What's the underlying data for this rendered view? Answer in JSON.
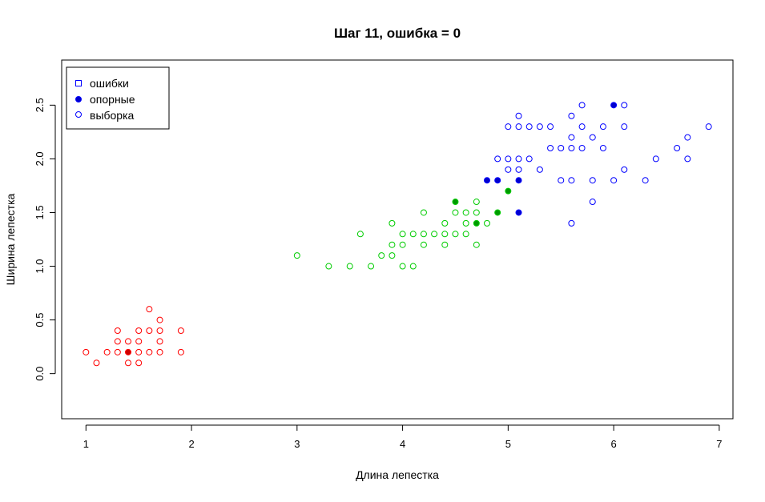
{
  "chart_data": {
    "type": "scatter",
    "title": "Шаг 11, ошибка = 0",
    "xlabel": "Длина лепестка",
    "ylabel": "Ширина лепестка",
    "xlim": [
      0.77,
      7.13
    ],
    "ylim": [
      -0.42,
      2.92
    ],
    "xticks": [
      1,
      2,
      3,
      4,
      5,
      6,
      7
    ],
    "yticks": [
      0.0,
      0.5,
      1.0,
      1.5,
      2.0,
      2.5
    ],
    "xtick_labels": [
      "1",
      "2",
      "3",
      "4",
      "5",
      "6",
      "7"
    ],
    "ytick_labels": [
      "0.0",
      "0.5",
      "1.0",
      "1.5",
      "2.0",
      "2.5"
    ],
    "grid": false,
    "legend": {
      "position": "top-left",
      "entries": [
        {
          "label": "ошибки",
          "marker": "open-square",
          "color": "#0000ff"
        },
        {
          "label": "опорные",
          "marker": "filled-circle",
          "color": "#0000ff"
        },
        {
          "label": "выборка",
          "marker": "open-circle",
          "color": "#0000ff"
        }
      ]
    },
    "colors": {
      "setosa": "#ff0000",
      "versicolor": "#00cc00",
      "virginica": "#0000ff",
      "setosa_fill": "#cc0000",
      "versicolor_fill": "#009900",
      "virginica_fill": "#0000cc"
    },
    "series": [
      {
        "color_key": "setosa",
        "sample": [
          [
            1.0,
            0.2
          ],
          [
            1.1,
            0.1
          ],
          [
            1.2,
            0.2
          ],
          [
            1.3,
            0.2
          ],
          [
            1.3,
            0.3
          ],
          [
            1.3,
            0.4
          ],
          [
            1.4,
            0.1
          ],
          [
            1.4,
            0.3
          ],
          [
            1.5,
            0.1
          ],
          [
            1.5,
            0.2
          ],
          [
            1.5,
            0.3
          ],
          [
            1.5,
            0.4
          ],
          [
            1.6,
            0.2
          ],
          [
            1.6,
            0.4
          ],
          [
            1.6,
            0.6
          ],
          [
            1.7,
            0.2
          ],
          [
            1.7,
            0.3
          ],
          [
            1.7,
            0.4
          ],
          [
            1.7,
            0.5
          ],
          [
            1.9,
            0.2
          ],
          [
            1.9,
            0.4
          ]
        ],
        "support": [
          [
            1.4,
            0.2
          ]
        ]
      },
      {
        "color_key": "versicolor",
        "sample": [
          [
            3.0,
            1.1
          ],
          [
            3.3,
            1.0
          ],
          [
            3.5,
            1.0
          ],
          [
            3.6,
            1.3
          ],
          [
            3.7,
            1.0
          ],
          [
            3.8,
            1.1
          ],
          [
            3.9,
            1.1
          ],
          [
            3.9,
            1.2
          ],
          [
            3.9,
            1.4
          ],
          [
            4.0,
            1.0
          ],
          [
            4.0,
            1.2
          ],
          [
            4.0,
            1.3
          ],
          [
            4.1,
            1.0
          ],
          [
            4.1,
            1.3
          ],
          [
            4.2,
            1.2
          ],
          [
            4.2,
            1.3
          ],
          [
            4.2,
            1.5
          ],
          [
            4.3,
            1.3
          ],
          [
            4.4,
            1.2
          ],
          [
            4.4,
            1.3
          ],
          [
            4.4,
            1.4
          ],
          [
            4.5,
            1.3
          ],
          [
            4.5,
            1.5
          ],
          [
            4.6,
            1.3
          ],
          [
            4.6,
            1.4
          ],
          [
            4.6,
            1.5
          ],
          [
            4.7,
            1.2
          ],
          [
            4.7,
            1.5
          ],
          [
            4.7,
            1.6
          ],
          [
            4.8,
            1.4
          ]
        ],
        "support": [
          [
            4.5,
            1.6
          ],
          [
            4.7,
            1.4
          ],
          [
            4.9,
            1.5
          ],
          [
            5.0,
            1.7
          ]
        ]
      },
      {
        "color_key": "virginica",
        "sample": [
          [
            4.9,
            2.0
          ],
          [
            5.0,
            1.9
          ],
          [
            5.0,
            2.0
          ],
          [
            5.0,
            2.3
          ],
          [
            5.1,
            1.9
          ],
          [
            5.1,
            2.0
          ],
          [
            5.1,
            2.3
          ],
          [
            5.1,
            2.4
          ],
          [
            5.2,
            2.0
          ],
          [
            5.2,
            2.3
          ],
          [
            5.3,
            1.9
          ],
          [
            5.3,
            2.3
          ],
          [
            5.4,
            2.1
          ],
          [
            5.4,
            2.3
          ],
          [
            5.5,
            1.8
          ],
          [
            5.5,
            2.1
          ],
          [
            5.6,
            1.4
          ],
          [
            5.6,
            1.8
          ],
          [
            5.6,
            2.1
          ],
          [
            5.6,
            2.2
          ],
          [
            5.6,
            2.4
          ],
          [
            5.7,
            2.1
          ],
          [
            5.7,
            2.3
          ],
          [
            5.7,
            2.5
          ],
          [
            5.8,
            1.6
          ],
          [
            5.8,
            1.8
          ],
          [
            5.8,
            2.2
          ],
          [
            5.9,
            2.1
          ],
          [
            5.9,
            2.3
          ],
          [
            6.0,
            1.8
          ],
          [
            6.1,
            1.9
          ],
          [
            6.1,
            2.3
          ],
          [
            6.1,
            2.5
          ],
          [
            6.3,
            1.8
          ],
          [
            6.4,
            2.0
          ],
          [
            6.6,
            2.1
          ],
          [
            6.7,
            2.0
          ],
          [
            6.7,
            2.2
          ],
          [
            6.9,
            2.3
          ]
        ],
        "support": [
          [
            4.8,
            1.8
          ],
          [
            4.9,
            1.8
          ],
          [
            5.1,
            1.5
          ],
          [
            5.1,
            1.8
          ],
          [
            6.0,
            2.5
          ]
        ]
      }
    ]
  }
}
